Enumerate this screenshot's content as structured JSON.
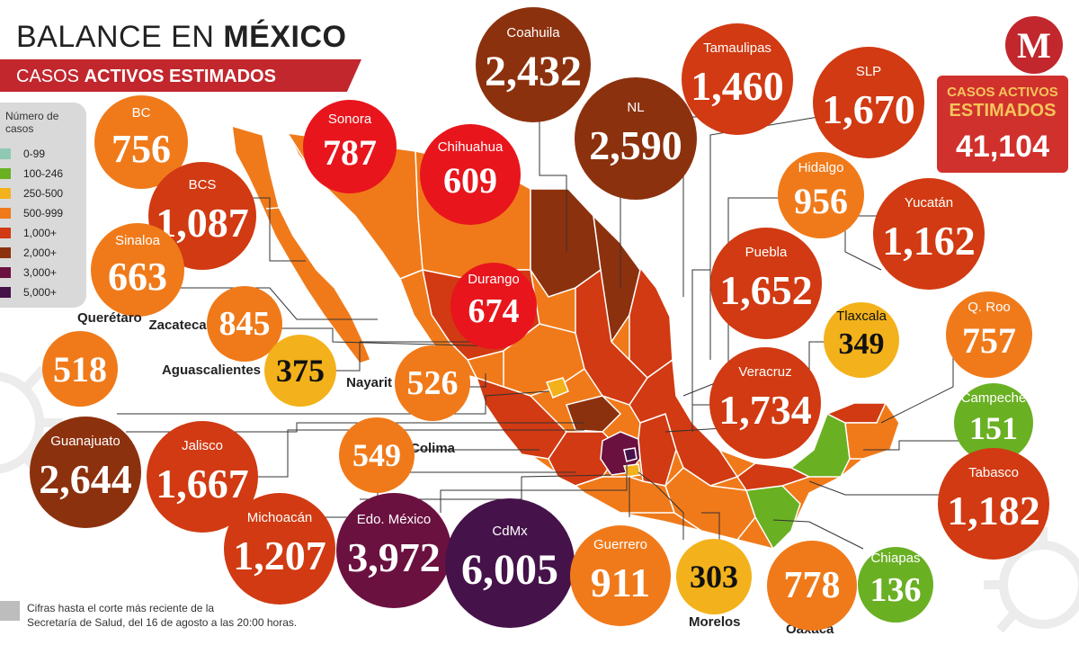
{
  "header": {
    "title_light": "BALANCE EN ",
    "title_bold": "MÉXICO",
    "subtitle_light": "CASOS ",
    "subtitle_bold": "ACTIVOS ESTIMADOS"
  },
  "logo": {
    "letter": "M"
  },
  "total": {
    "line1": "CASOS ACTIVOS",
    "line2": "ESTIMADOS",
    "value": "41,104"
  },
  "legend": {
    "title": "Número de casos",
    "items": [
      {
        "label": "0-99",
        "color": "#8fc9b4"
      },
      {
        "label": "100-246",
        "color": "#6ab023"
      },
      {
        "label": "250-500",
        "color": "#f3b21b"
      },
      {
        "label": "500-999",
        "color": "#f07a1a"
      },
      {
        "label": "1,000+",
        "color": "#d13a12"
      },
      {
        "label": "2,000+",
        "color": "#8c310e"
      },
      {
        "label": "3,000+",
        "color": "#6b1140"
      },
      {
        "label": "5,000+",
        "color": "#45124a"
      }
    ]
  },
  "states": [
    {
      "name": "BC",
      "value": "756",
      "color": "#f07a1a"
    },
    {
      "name": "Sonora",
      "value": "787",
      "color": "#e8151c"
    },
    {
      "name": "Chihuahua",
      "value": "609",
      "color": "#e8151c"
    },
    {
      "name": "Coahuila",
      "value": "2,432",
      "color": "#8c310e"
    },
    {
      "name": "NL",
      "value": "2,590",
      "color": "#8c310e"
    },
    {
      "name": "Tamaulipas",
      "value": "1,460",
      "color": "#d13a12"
    },
    {
      "name": "SLP",
      "value": "1,670",
      "color": "#d13a12"
    },
    {
      "name": "BCS",
      "value": "1,087",
      "color": "#d13a12"
    },
    {
      "name": "Hidalgo",
      "value": "956",
      "color": "#f07a1a"
    },
    {
      "name": "Yucatán",
      "value": "1,162",
      "color": "#d13a12"
    },
    {
      "name": "Sinaloa",
      "value": "663",
      "color": "#f07a1a"
    },
    {
      "name": "Puebla",
      "value": "1,652",
      "color": "#d13a12"
    },
    {
      "name": "Durango",
      "value": "674",
      "color": "#e8151c"
    },
    {
      "name": "Zacatecas",
      "value": "845",
      "color": "#f07a1a"
    },
    {
      "name": "Tlaxcala",
      "value": "349",
      "color": "#f3b21b"
    },
    {
      "name": "Q. Roo",
      "value": "757",
      "color": "#f07a1a"
    },
    {
      "name": "Querétaro",
      "value": "518",
      "color": "#f07a1a"
    },
    {
      "name": "Aguascalientes",
      "value": "375",
      "color": "#f3b21b"
    },
    {
      "name": "Nayarit",
      "value": "526",
      "color": "#f07a1a"
    },
    {
      "name": "Veracruz",
      "value": "1,734",
      "color": "#d13a12"
    },
    {
      "name": "Campeche",
      "value": "151",
      "color": "#6ab023"
    },
    {
      "name": "Guanajuato",
      "value": "2,644",
      "color": "#8c310e"
    },
    {
      "name": "Jalisco",
      "value": "1,667",
      "color": "#d13a12"
    },
    {
      "name": "Colima",
      "value": "549",
      "color": "#f07a1a"
    },
    {
      "name": "Tabasco",
      "value": "1,182",
      "color": "#d13a12"
    },
    {
      "name": "Michoacán",
      "value": "1,207",
      "color": "#d13a12"
    },
    {
      "name": "Edo. México",
      "value": "3,972",
      "color": "#6b1140"
    },
    {
      "name": "CdMx",
      "value": "6,005",
      "color": "#45124a"
    },
    {
      "name": "Guerrero",
      "value": "911",
      "color": "#f07a1a"
    },
    {
      "name": "Morelos",
      "value": "303",
      "color": "#f3b21b"
    },
    {
      "name": "Oaxaca",
      "value": "778",
      "color": "#f07a1a"
    },
    {
      "name": "Chiapas",
      "value": "136",
      "color": "#6ab023"
    }
  ],
  "footer": {
    "line1": "Cifras hasta el corte más reciente de la",
    "line2": "Secretaría de Salud, del 16 de agosto a las 20:00 horas."
  }
}
